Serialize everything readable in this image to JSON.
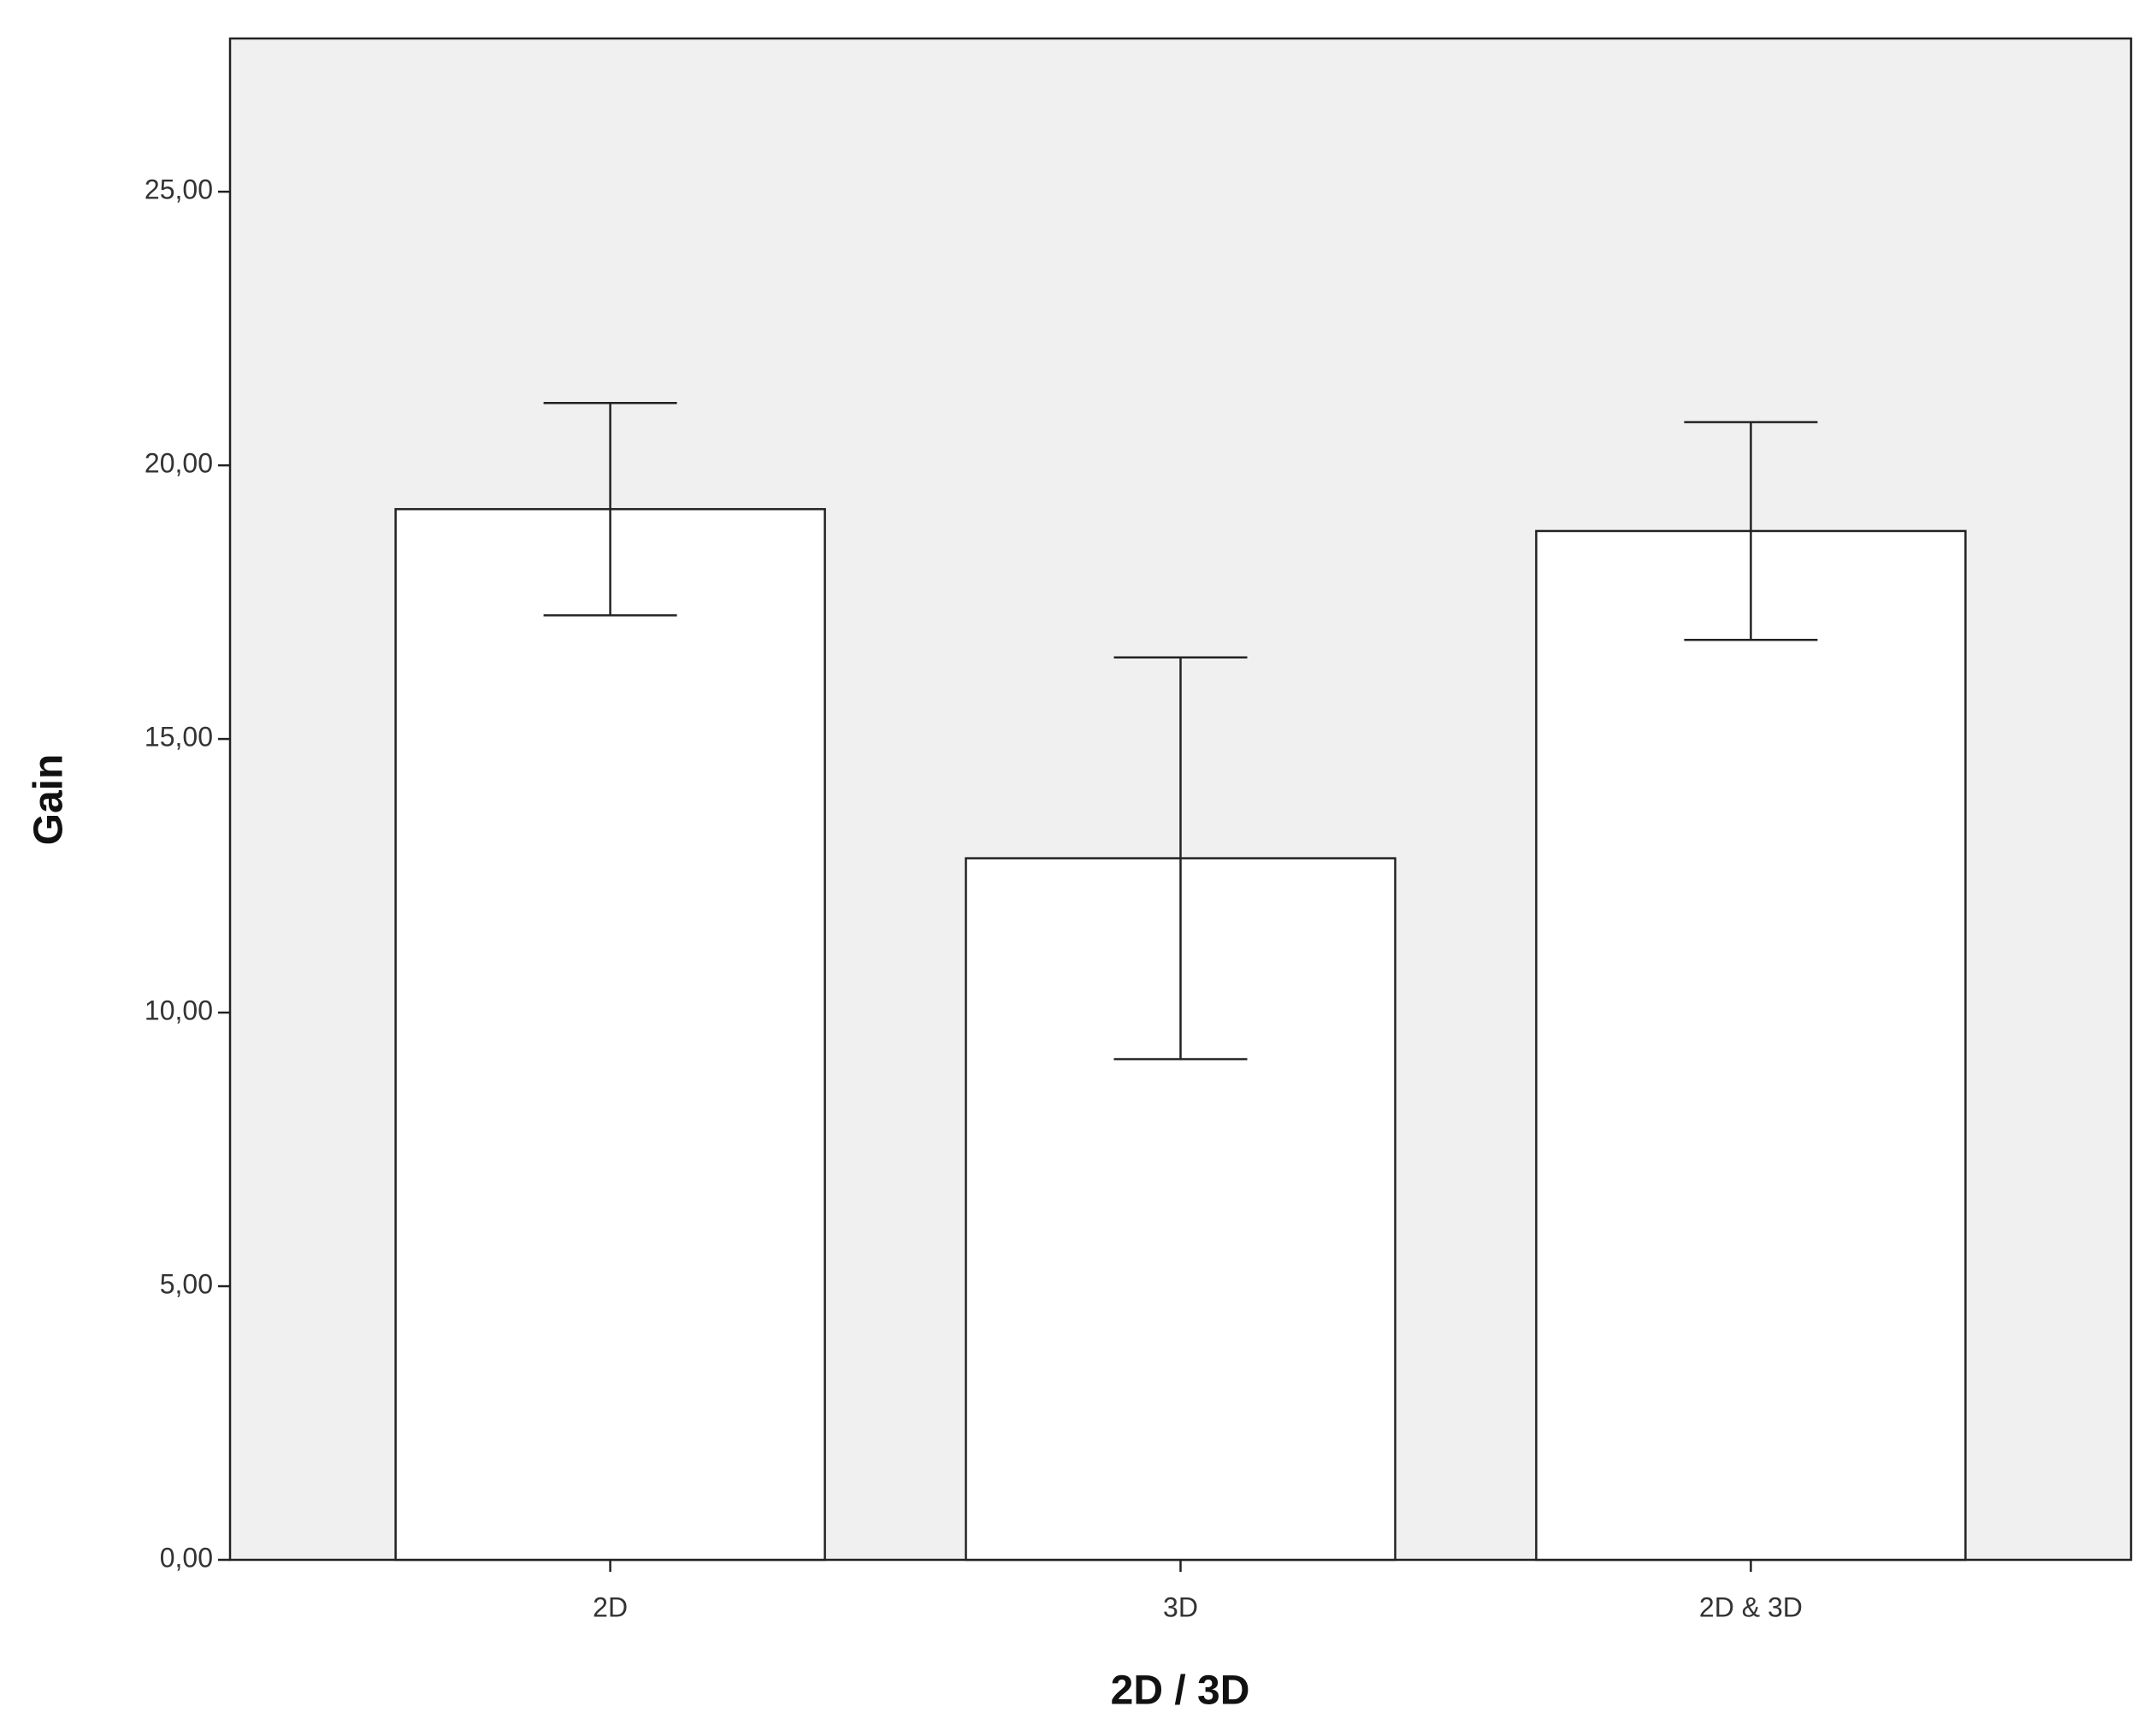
{
  "chart_data": {
    "type": "bar",
    "x_label": "2D / 3D",
    "y_label": "Gain",
    "categories": [
      "2D",
      "3D",
      "2D & 3D"
    ],
    "values": [
      19.2,
      12.82,
      18.8
    ],
    "errors": [
      1.94,
      3.67,
      1.99
    ],
    "color": "#ffffff",
    "background": "#f0f0f0",
    "ylim": [
      0,
      27.8
    ],
    "yticks": [
      {
        "value": 0,
        "label": "0,00"
      },
      {
        "value": 5,
        "label": "5,00"
      },
      {
        "value": 10,
        "label": "10,00"
      },
      {
        "value": 15,
        "label": "15,00"
      },
      {
        "value": 20,
        "label": "20,00"
      },
      {
        "value": 25,
        "label": "25,00"
      }
    ]
  }
}
